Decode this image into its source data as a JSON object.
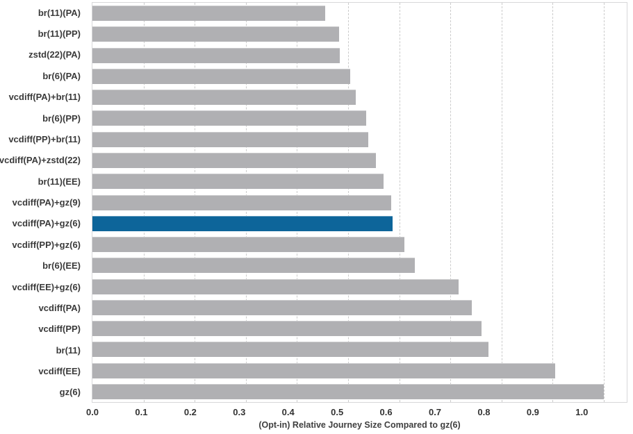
{
  "chart_data": {
    "type": "bar",
    "orientation": "horizontal",
    "title": "",
    "xlabel": "(Opt-in) Relative Journey Size Compared to gz(6)",
    "ylabel": "",
    "xlim": [
      0,
      1.045
    ],
    "xticks": [
      "0.0",
      "0.1",
      "0.2",
      "0.3",
      "0.4",
      "0.5",
      "0.6",
      "0.7",
      "0.8",
      "0.9",
      "1.0"
    ],
    "grid": "vertical-dashed",
    "legend": "none",
    "categories": [
      "br(11)(PA)",
      "br(11)(PP)",
      "zstd(22)(PA)",
      "br(6)(PA)",
      "vcdiff(PA)+br(11)",
      "br(6)(PP)",
      "vcdiff(PP)+br(11)",
      "vcdiff(PA)+zstd(22)",
      "br(11)(EE)",
      "vcdiff(PA)+gz(9)",
      "vcdiff(PA)+gz(6)",
      "vcdiff(PP)+gz(6)",
      "br(6)(EE)",
      "vcdiff(EE)+gz(6)",
      "vcdiff(PA)",
      "vcdiff(PP)",
      "br(11)",
      "vcdiff(EE)",
      "gz(6)"
    ],
    "values": [
      0.455,
      0.483,
      0.484,
      0.504,
      0.515,
      0.535,
      0.539,
      0.555,
      0.57,
      0.585,
      0.587,
      0.61,
      0.631,
      0.716,
      0.742,
      0.761,
      0.774,
      0.905,
      1.0
    ],
    "highlight_index": 10,
    "colors": {
      "bar": "#b0b0b3",
      "highlight": "#0d659a",
      "grid": "#cbcbcb",
      "frame": "#d7d7d9",
      "label_text": "#3a3a3a",
      "tick_text": "#333333",
      "axis_title_text": "#3f3f3f",
      "background": "#ffffff"
    }
  }
}
